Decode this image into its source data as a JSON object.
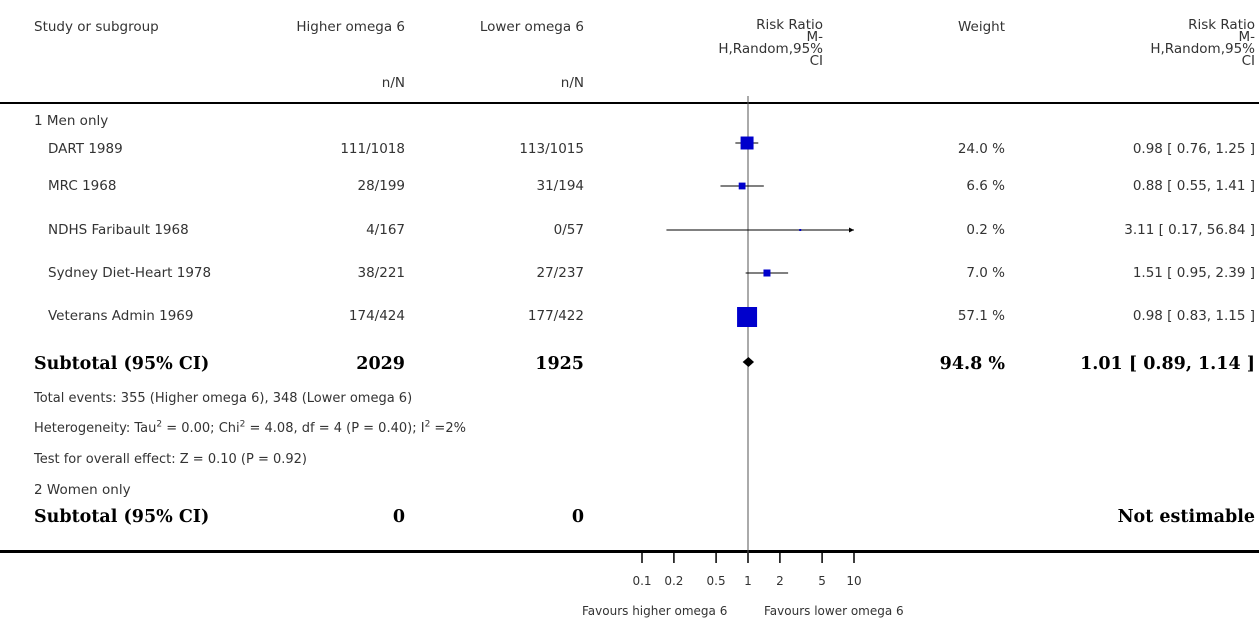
{
  "header": {
    "study": "Study or subgroup",
    "group1": "Higher omega 6",
    "group2": "Lower omega 6",
    "nN": "n/N",
    "rr_title": "Risk Ratio",
    "rr_method_l1": "M-",
    "rr_method_l2": "H,Random,95%",
    "rr_method_l3": "CI",
    "weight": "Weight"
  },
  "subgroups": [
    {
      "label": "1 Men only",
      "studies": [
        {
          "name": "DART 1989",
          "g1": "111/1018",
          "g2": "113/1015",
          "weight": "24.0 %",
          "ci_text": "0.98 [ 0.76, 1.25 ]"
        },
        {
          "name": "MRC 1968",
          "g1": "28/199",
          "g2": "31/194",
          "weight": "6.6 %",
          "ci_text": "0.88 [ 0.55, 1.41 ]"
        },
        {
          "name": "NDHS Faribault 1968",
          "g1": "4/167",
          "g2": "0/57",
          "weight": "0.2 %",
          "ci_text": "3.11 [ 0.17, 56.84 ]"
        },
        {
          "name": "Sydney Diet-Heart 1978",
          "g1": "38/221",
          "g2": "27/237",
          "weight": "7.0 %",
          "ci_text": "1.51 [ 0.95, 2.39 ]"
        },
        {
          "name": "Veterans Admin 1969",
          "g1": "174/424",
          "g2": "177/422",
          "weight": "57.1 %",
          "ci_text": "0.98 [ 0.83, 1.15 ]"
        }
      ],
      "subtotal": {
        "label": "Subtotal (95% CI)",
        "g1": "2029",
        "g2": "1925",
        "weight": "94.8 %",
        "ci_text": "1.01 [ 0.89, 1.14 ]"
      },
      "notes": {
        "events": "Total events: 355 (Higher omega 6), 348 (Lower omega 6)",
        "het_a": "Heterogeneity: Tau",
        "het_b": " = 0.00; Chi",
        "het_c": " = 4.08, df = 4 (P = 0.40); I",
        "het_d": " =2%",
        "sup2": "2",
        "overall": "Test for overall effect: Z = 0.10 (P = 0.92)"
      }
    },
    {
      "label": "2 Women only",
      "subtotal": {
        "label": "Subtotal (95% CI)",
        "g1": "0",
        "g2": "0",
        "ci_text": "Not estimable"
      }
    }
  ],
  "axis": {
    "tick_labels": [
      "0.1",
      "0.2",
      "0.5",
      "1",
      "2",
      "5",
      "10"
    ],
    "favours_left": "Favours higher omega 6",
    "favours_right": "Favours lower omega 6"
  },
  "chart_data": {
    "type": "forest",
    "scale": "log",
    "xlim": [
      0.1,
      10
    ],
    "ticks": [
      0.1,
      0.2,
      0.5,
      1,
      2,
      5,
      10
    ],
    "studies": [
      {
        "name": "DART 1989",
        "rr": 0.98,
        "lo": 0.76,
        "hi": 1.25,
        "weight": 24.0
      },
      {
        "name": "MRC 1968",
        "rr": 0.88,
        "lo": 0.55,
        "hi": 1.41,
        "weight": 6.6
      },
      {
        "name": "NDHS Faribault 1968",
        "rr": 3.11,
        "lo": 0.17,
        "hi": 56.84,
        "weight": 0.2
      },
      {
        "name": "Sydney Diet-Heart 1978",
        "rr": 1.51,
        "lo": 0.95,
        "hi": 2.39,
        "weight": 7.0
      },
      {
        "name": "Veterans Admin 1969",
        "rr": 0.98,
        "lo": 0.83,
        "hi": 1.15,
        "weight": 57.1
      }
    ],
    "subtotal": {
      "rr": 1.01,
      "lo": 0.89,
      "hi": 1.14
    }
  }
}
